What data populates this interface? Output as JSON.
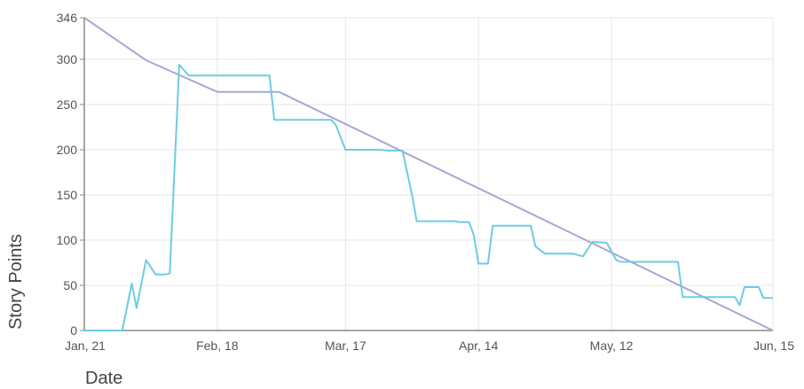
{
  "chart_data": {
    "type": "line",
    "title": "",
    "xlabel": "Date",
    "ylabel": "Story Points",
    "x_range": [
      "2019-01-21",
      "2019-06-15"
    ],
    "ylim": [
      0,
      346
    ],
    "grid": true,
    "y_ticks": [
      0,
      50,
      100,
      150,
      200,
      250,
      300,
      346
    ],
    "y_tick_labels": [
      "0",
      "50",
      "100",
      "150",
      "200",
      "250",
      "300",
      "346"
    ],
    "x_ticks": [
      "2019-01-21",
      "2019-02-18",
      "2019-03-17",
      "2019-04-14",
      "2019-05-12",
      "2019-06-15"
    ],
    "x_tick_labels": [
      "Jan, 21",
      "Feb, 18",
      "Mar, 17",
      "Apr, 14",
      "May, 12",
      "Jun, 15"
    ],
    "colors": {
      "ideal": "#a9a6d3",
      "actual": "#6ccde0",
      "grid": "#e6e6e6",
      "axis": "#888888"
    },
    "series": [
      {
        "key": "ideal",
        "color": "#a9a6d3",
        "points": [
          [
            "2019-01-21",
            346
          ],
          [
            "2019-02-03",
            299
          ],
          [
            "2019-02-18",
            264
          ],
          [
            "2019-03-03",
            264
          ],
          [
            "2019-06-15",
            0
          ]
        ]
      },
      {
        "key": "actual",
        "color": "#6ccde0",
        "points": [
          [
            "2019-01-21",
            0
          ],
          [
            "2019-01-29",
            0
          ],
          [
            "2019-01-31",
            52
          ],
          [
            "2019-02-01",
            25
          ],
          [
            "2019-02-03",
            78
          ],
          [
            "2019-02-05",
            62
          ],
          [
            "2019-02-07",
            62
          ],
          [
            "2019-02-08",
            63
          ],
          [
            "2019-02-10",
            294
          ],
          [
            "2019-02-12",
            282
          ],
          [
            "2019-03-01",
            282
          ],
          [
            "2019-03-02",
            233
          ],
          [
            "2019-03-14",
            233
          ],
          [
            "2019-03-15",
            227
          ],
          [
            "2019-03-17",
            200
          ],
          [
            "2019-03-24",
            200
          ],
          [
            "2019-03-26",
            199
          ],
          [
            "2019-03-29",
            199
          ],
          [
            "2019-03-31",
            150
          ],
          [
            "2019-04-01",
            121
          ],
          [
            "2019-04-09",
            121
          ],
          [
            "2019-04-10",
            120
          ],
          [
            "2019-04-12",
            120
          ],
          [
            "2019-04-13",
            106
          ],
          [
            "2019-04-14",
            74
          ],
          [
            "2019-04-16",
            74
          ],
          [
            "2019-04-17",
            116
          ],
          [
            "2019-04-25",
            116
          ],
          [
            "2019-04-26",
            93
          ],
          [
            "2019-04-28",
            85
          ],
          [
            "2019-05-04",
            85
          ],
          [
            "2019-05-06",
            82
          ],
          [
            "2019-05-08",
            98
          ],
          [
            "2019-05-11",
            97
          ],
          [
            "2019-05-13",
            78
          ],
          [
            "2019-05-14",
            76
          ],
          [
            "2019-05-26",
            76
          ],
          [
            "2019-05-27",
            37
          ],
          [
            "2019-06-07",
            37
          ],
          [
            "2019-06-08",
            28
          ],
          [
            "2019-06-09",
            48
          ],
          [
            "2019-06-12",
            48
          ],
          [
            "2019-06-13",
            36
          ],
          [
            "2019-06-15",
            36
          ]
        ]
      }
    ]
  }
}
